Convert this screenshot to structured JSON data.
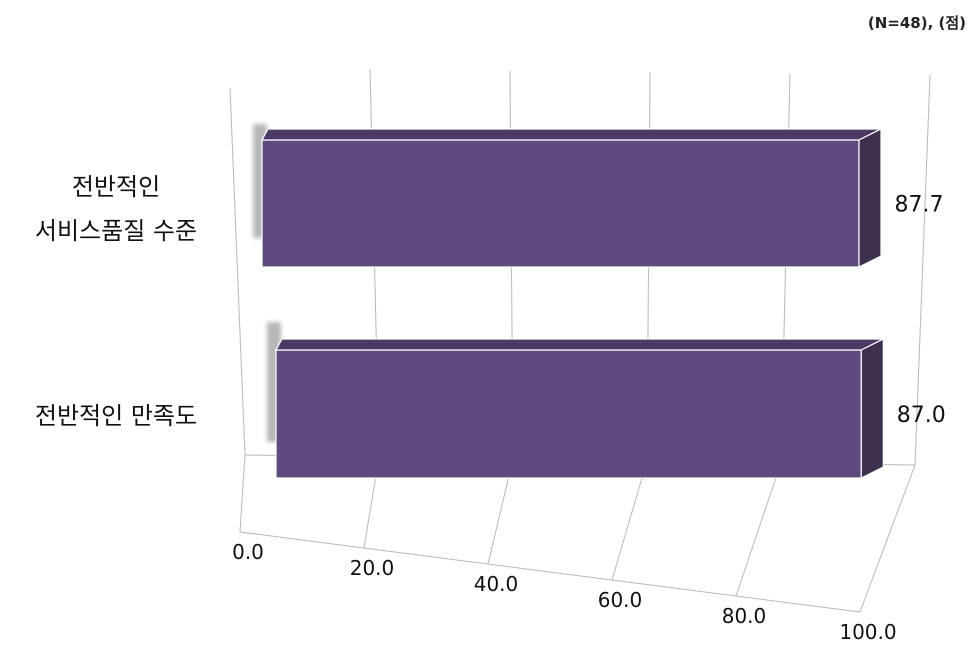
{
  "header": {
    "note": "(N=48), (점)"
  },
  "chart_data": {
    "type": "bar",
    "orientation": "horizontal",
    "style": "3d",
    "categories": [
      [
        "전반적인",
        "서비스품질 수준"
      ],
      [
        "전반적인 만족도"
      ]
    ],
    "values": [
      87.7,
      87.0
    ],
    "value_labels": [
      "87.7",
      "87.0"
    ],
    "tick_labels": [
      "0.0",
      "20.0",
      "40.0",
      "60.0",
      "80.0",
      "100.0"
    ],
    "xlim": [
      0,
      100
    ],
    "grid": true,
    "legend": "none",
    "colors": {
      "bar_front": "#5E4A7C",
      "bar_top": "#4B3A66",
      "bar_side": "#3E304F",
      "grid": "#b8b8b8",
      "shadow": "#9a9a9a"
    }
  }
}
